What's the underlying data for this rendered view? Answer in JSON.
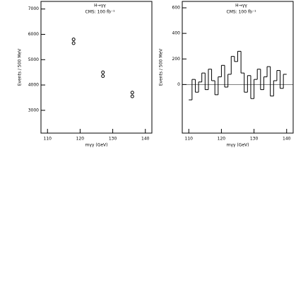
{
  "chart_data": [
    {
      "type": "scatter",
      "legend": [
        "H→γγ",
        "CMS: 100 fb⁻¹"
      ],
      "xlabel": "mγγ (GeV)",
      "ylabel": "Events / 500 MeV",
      "x": [
        118,
        118,
        127,
        127,
        136,
        136
      ],
      "values": [
        5800,
        5650,
        4500,
        4350,
        3700,
        3550
      ],
      "color": "#000000",
      "xlim": [
        108,
        142
      ],
      "xticks": [
        110,
        120,
        130,
        140
      ],
      "ylim": [
        2100,
        7300
      ],
      "yticks": [
        3000,
        4000,
        5000,
        6000,
        7000
      ]
    },
    {
      "type": "histogram",
      "legend": [
        "H→γγ",
        "CMS: 100 fb⁻¹"
      ],
      "xlabel": "mγγ (GeV)",
      "ylabel": "Events / 500 MeV",
      "bins": [
        110,
        111,
        112,
        113,
        114,
        115,
        116,
        117,
        118,
        119,
        120,
        121,
        122,
        123,
        124,
        125,
        126,
        127,
        128,
        129,
        130,
        131,
        132,
        133,
        134,
        135,
        136,
        137,
        138,
        139,
        140
      ],
      "counts": [
        -120,
        40,
        -60,
        20,
        90,
        -40,
        120,
        30,
        -80,
        60,
        150,
        -20,
        80,
        220,
        180,
        260,
        90,
        -60,
        70,
        -110,
        40,
        120,
        -40,
        60,
        140,
        -90,
        30,
        110,
        -30,
        80
      ],
      "color": "#000000",
      "xlim": [
        108,
        142
      ],
      "xticks": [
        110,
        120,
        130,
        140
      ],
      "ylim": [
        -380,
        650
      ],
      "yticks": [
        0,
        200,
        400,
        600
      ]
    }
  ]
}
